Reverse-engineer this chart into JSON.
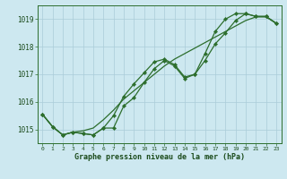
{
  "hours": [
    0,
    1,
    2,
    3,
    4,
    5,
    6,
    7,
    8,
    9,
    10,
    11,
    12,
    13,
    14,
    15,
    16,
    17,
    18,
    19,
    20,
    21,
    22,
    23
  ],
  "series1": [
    1015.55,
    1015.1,
    1014.8,
    1014.9,
    1014.85,
    1014.8,
    1015.05,
    1015.05,
    1015.85,
    1016.15,
    1016.7,
    1017.2,
    1017.5,
    1017.3,
    1016.85,
    1017.0,
    1017.5,
    1018.1,
    1018.5,
    1018.95,
    1019.2,
    1019.1,
    1019.1,
    1018.85
  ],
  "series2": [
    1015.55,
    1015.1,
    1014.8,
    1014.9,
    1014.85,
    1014.8,
    1015.05,
    1015.5,
    1016.2,
    1016.65,
    1017.05,
    1017.45,
    1017.55,
    1017.35,
    1016.9,
    1017.0,
    1017.75,
    1018.55,
    1019.0,
    1019.2,
    1019.2,
    1019.1,
    1019.1,
    1018.85
  ],
  "trend": [
    1015.55,
    1015.1,
    1014.8,
    1014.9,
    1014.95,
    1015.05,
    1015.35,
    1015.7,
    1016.1,
    1016.4,
    1016.7,
    1017.0,
    1017.3,
    1017.55,
    1017.75,
    1017.95,
    1018.15,
    1018.35,
    1018.55,
    1018.75,
    1018.95,
    1019.08,
    1019.08,
    1018.85
  ],
  "line_color": "#2d6e2d",
  "bg_color": "#cde8f0",
  "grid_color": "#aaccd8",
  "text_color": "#1a4a1a",
  "xlabel": "Graphe pression niveau de la mer (hPa)",
  "ylim": [
    1014.5,
    1019.5
  ],
  "yticks": [
    1015,
    1016,
    1017,
    1018,
    1019
  ],
  "xticks": [
    0,
    1,
    2,
    3,
    4,
    5,
    6,
    7,
    8,
    9,
    10,
    11,
    12,
    13,
    14,
    15,
    16,
    17,
    18,
    19,
    20,
    21,
    22,
    23
  ],
  "marker_size": 2.2,
  "line_width": 0.9
}
